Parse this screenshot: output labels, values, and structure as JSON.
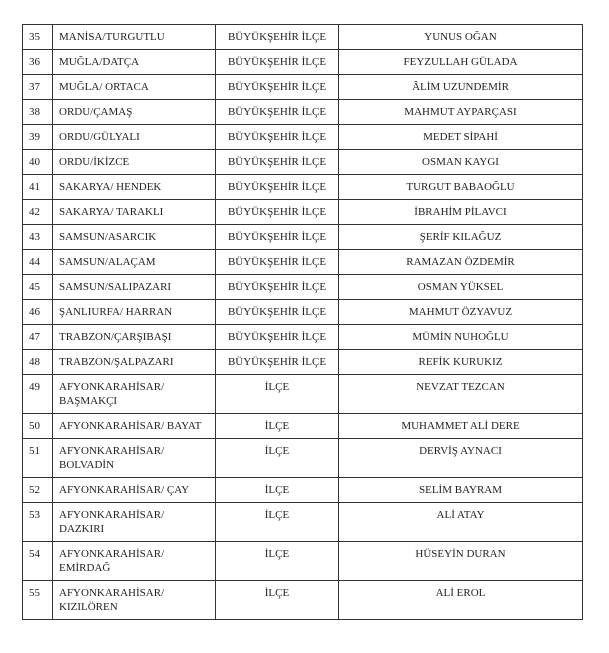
{
  "rows": [
    {
      "no": "35",
      "place": "MANİSA/TURGUTLU",
      "type": "BÜYÜKŞEHİR İLÇE",
      "name": "YUNUS OĞAN"
    },
    {
      "no": "36",
      "place": "MUĞLA/DATÇA",
      "type": "BÜYÜKŞEHİR İLÇE",
      "name": "FEYZULLAH GÜLADA"
    },
    {
      "no": "37",
      "place": "MUĞLA/ ORTACA",
      "type": "BÜYÜKŞEHİR İLÇE",
      "name": "ÂLİM UZUNDEMİR"
    },
    {
      "no": "38",
      "place": "ORDU/ÇAMAŞ",
      "type": "BÜYÜKŞEHİR İLÇE",
      "name": "MAHMUT AYPARÇASI"
    },
    {
      "no": "39",
      "place": "ORDU/GÜLYALI",
      "type": "BÜYÜKŞEHİR İLÇE",
      "name": "MEDET SİPAHİ"
    },
    {
      "no": "40",
      "place": "ORDU/İKİZCE",
      "type": "BÜYÜKŞEHİR İLÇE",
      "name": "OSMAN KAYGI"
    },
    {
      "no": "41",
      "place": "SAKARYA/ HENDEK",
      "type": "BÜYÜKŞEHİR İLÇE",
      "name": "TURGUT BABAOĞLU"
    },
    {
      "no": "42",
      "place": "SAKARYA/ TARAKLI",
      "type": "BÜYÜKŞEHİR İLÇE",
      "name": "İBRAHİM PİLAVCI"
    },
    {
      "no": "43",
      "place": "SAMSUN/ASARCIK",
      "type": "BÜYÜKŞEHİR İLÇE",
      "name": "ŞERİF KILAĞUZ"
    },
    {
      "no": "44",
      "place": "SAMSUN/ALAÇAM",
      "type": "BÜYÜKŞEHİR İLÇE",
      "name": "RAMAZAN ÖZDEMİR"
    },
    {
      "no": "45",
      "place": "SAMSUN/SALIPAZARI",
      "type": "BÜYÜKŞEHİR İLÇE",
      "name": "OSMAN YÜKSEL"
    },
    {
      "no": "46",
      "place": "ŞANLIURFA/ HARRAN",
      "type": "BÜYÜKŞEHİR İLÇE",
      "name": "MAHMUT ÖZYAVUZ"
    },
    {
      "no": "47",
      "place": "TRABZON/ÇARŞIBAŞI",
      "type": "BÜYÜKŞEHİR İLÇE",
      "name": "MÜMİN NUHOĞLU"
    },
    {
      "no": "48",
      "place": "TRABZON/ŞALPAZARI",
      "type": "BÜYÜKŞEHİR İLÇE",
      "name": "REFİK KURUKIZ"
    },
    {
      "no": "49",
      "place": "AFYONKARAHİSAR/",
      "place2": "BAŞMAKÇI",
      "type": "İLÇE",
      "name": "NEVZAT TEZCAN"
    },
    {
      "no": "50",
      "place": "AFYONKARAHİSAR/ BAYAT",
      "type": "İLÇE",
      "name": "MUHAMMET ALİ DERE"
    },
    {
      "no": "51",
      "place": "AFYONKARAHİSAR/",
      "place2": "BOLVADİN",
      "type": "İLÇE",
      "name": "DERVİŞ AYNACI"
    },
    {
      "no": "52",
      "place": "AFYONKARAHİSAR/ ÇAY",
      "type": "İLÇE",
      "name": "SELİM BAYRAM"
    },
    {
      "no": "53",
      "place": "AFYONKARAHİSAR/",
      "place2": "DAZKIRI",
      "type": "İLÇE",
      "name": "ALİ ATAY"
    },
    {
      "no": "54",
      "place": "AFYONKARAHİSAR/",
      "place2": "EMİRDAĞ",
      "type": "İLÇE",
      "name": "HÜSEYİN DURAN"
    },
    {
      "no": "55",
      "place": "AFYONKARAHİSAR/",
      "place2": "KIZILÖREN",
      "type": "İLÇE",
      "name": "ALİ EROL"
    }
  ]
}
